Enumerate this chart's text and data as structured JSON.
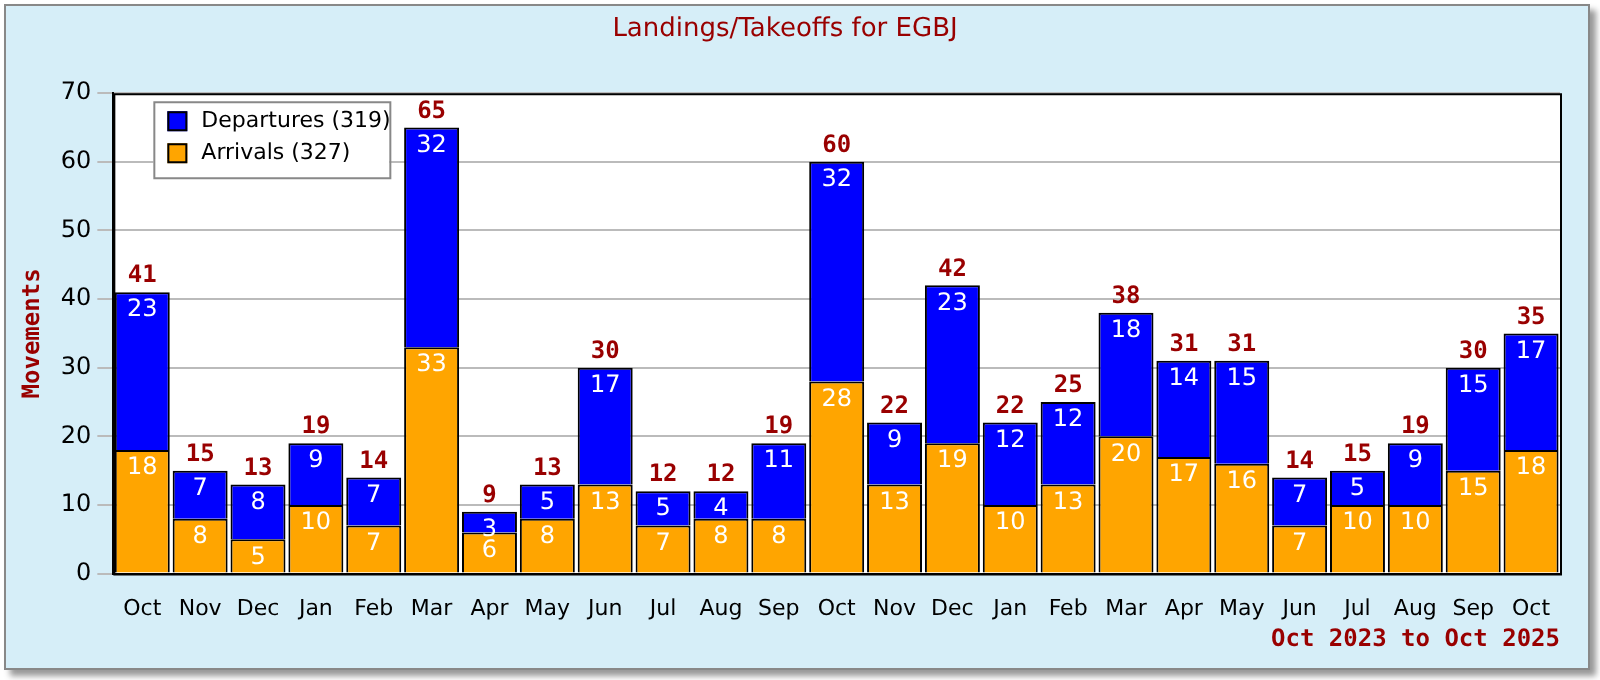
{
  "chart_data": {
    "type": "bar",
    "title": "Landings/Takeoffs for EGBJ",
    "ylabel": "Movements",
    "categories": [
      "Oct",
      "Nov",
      "Dec",
      "Jan",
      "Feb",
      "Mar",
      "Apr",
      "May",
      "Jun",
      "Jul",
      "Aug",
      "Sep",
      "Oct",
      "Nov",
      "Dec",
      "Jan",
      "Feb",
      "Mar",
      "Apr",
      "May",
      "Jun",
      "Jul",
      "Aug",
      "Sep",
      "Oct"
    ],
    "series": [
      {
        "name": "Arrivals (327)",
        "color": "#ffa500",
        "values": [
          18,
          8,
          5,
          10,
          7,
          33,
          6,
          8,
          13,
          7,
          8,
          8,
          28,
          13,
          19,
          10,
          13,
          20,
          17,
          16,
          7,
          10,
          10,
          15,
          18
        ]
      },
      {
        "name": "Departures (319)",
        "color": "#0000ff",
        "values": [
          23,
          7,
          8,
          9,
          7,
          32,
          3,
          5,
          17,
          5,
          4,
          11,
          32,
          9,
          23,
          12,
          12,
          18,
          14,
          15,
          7,
          5,
          9,
          15,
          17
        ]
      }
    ],
    "stacked": true,
    "data_labels": true,
    "totals": [
      "41",
      "15",
      "13",
      "19",
      "14",
      "65",
      "9",
      "13",
      "30",
      "12",
      "12",
      "19",
      "60",
      "22",
      "42",
      "22",
      "25",
      "38",
      "31",
      "31",
      "14",
      "15",
      "19",
      "30",
      "35"
    ],
    "ylim": [
      0,
      70
    ],
    "yticks": [
      0,
      10,
      20,
      30,
      40,
      50,
      60,
      70
    ],
    "grid": "y",
    "legend": "top left",
    "annotations": [
      "Oct 2023 to Oct 2025"
    ]
  }
}
